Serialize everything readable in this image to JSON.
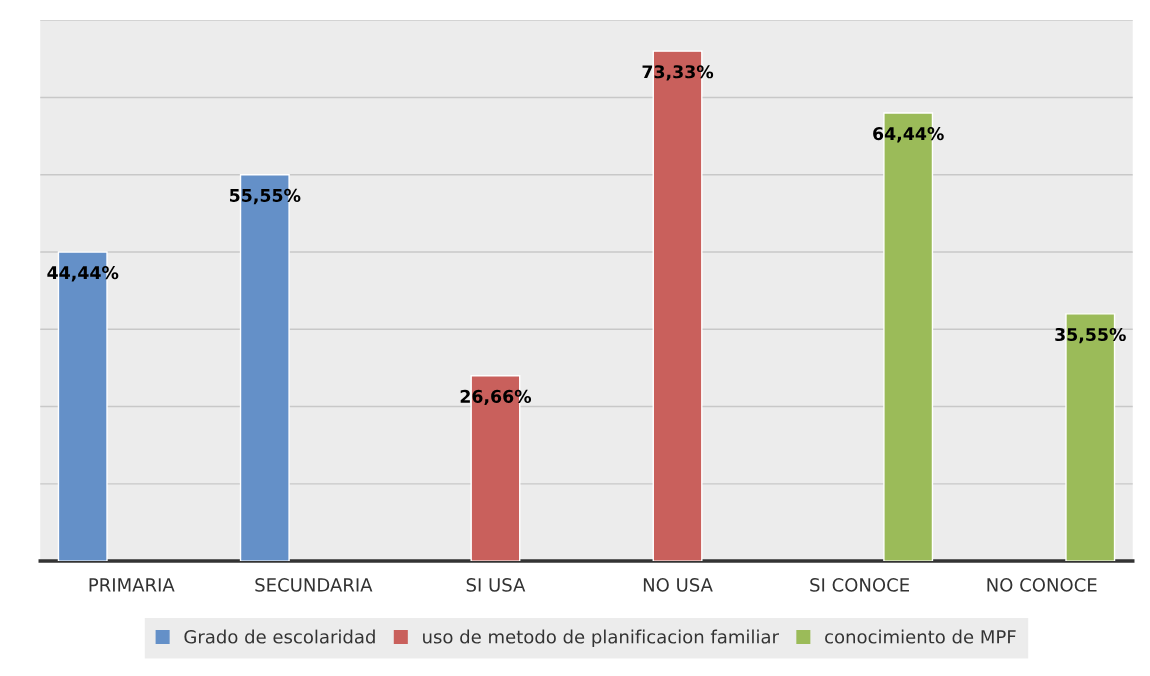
{
  "chart_data": {
    "type": "bar",
    "categories": [
      "PRIMARIA",
      "SECUNDARIA",
      "SI USA",
      "NO USA",
      "SI CONOCE",
      "NO CONOCE"
    ],
    "series": [
      {
        "name": "Grado de escolaridad",
        "color": "#6490c8",
        "values": [
          44.44,
          55.55,
          null,
          null,
          null,
          null
        ],
        "value_labels": [
          "44,44%",
          "55,55%",
          null,
          null,
          null,
          null
        ]
      },
      {
        "name": "uso de metodo de planificacion familiar",
        "color": "#c9605c",
        "values": [
          null,
          null,
          26.66,
          73.33,
          null,
          null
        ],
        "value_labels": [
          null,
          null,
          "26,66%",
          "73,33%",
          null,
          null
        ]
      },
      {
        "name": "conocimiento de MPF",
        "color": "#9bbb59",
        "values": [
          null,
          null,
          null,
          null,
          64.44,
          35.55
        ],
        "value_labels": [
          null,
          null,
          null,
          null,
          "64,44%",
          "35,55%"
        ]
      }
    ],
    "ylim": [
      0,
      77.77
    ],
    "yticks": [
      {
        "value": 0,
        "label": null
      },
      {
        "value": 11.11,
        "label": null
      },
      {
        "value": 22.22,
        "label": null
      },
      {
        "value": 33.33,
        "label": null
      },
      {
        "value": 44.44,
        "label": null
      },
      {
        "value": 55.55,
        "label": null
      },
      {
        "value": 66.66,
        "label": null
      },
      {
        "value": 77.77,
        "label": null
      }
    ],
    "tick_labels": "x",
    "grid": "y",
    "legend": "bottom"
  }
}
